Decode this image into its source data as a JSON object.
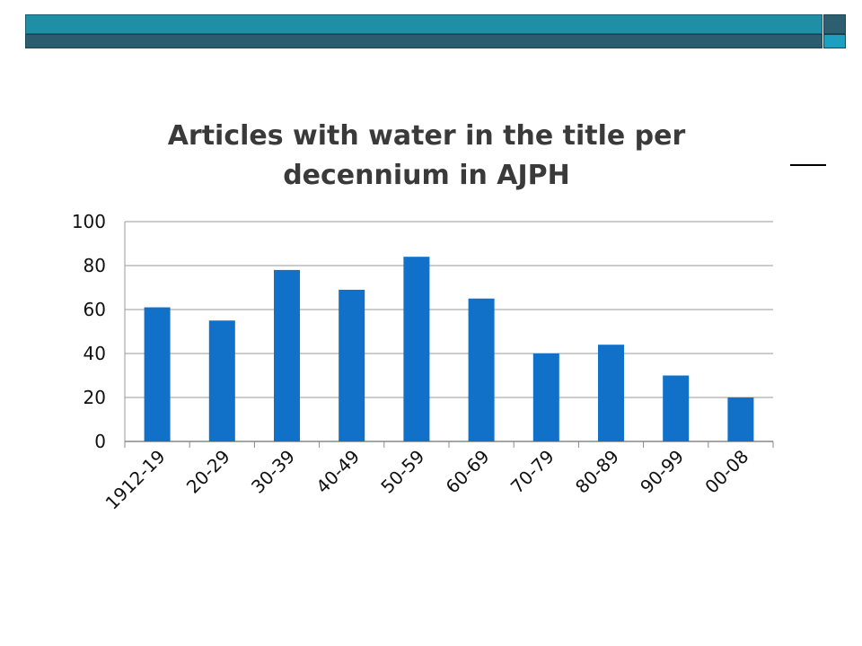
{
  "colors": {
    "bar": "#1170c8",
    "header_top": "#1f8fa6",
    "header_bottom": "#2a5d6e"
  },
  "chart_data": {
    "type": "bar",
    "title_line1": "Articles with water in the title per",
    "title_line2": "decennium in AJPH",
    "categories": [
      "1912-19",
      "20-29",
      "30-39",
      "40-49",
      "50-59",
      "60-69",
      "70-79",
      "80-89",
      "90-99",
      "00-08"
    ],
    "values": [
      61,
      55,
      78,
      69,
      84,
      65,
      40,
      44,
      30,
      20
    ],
    "yticks": [
      "0",
      "20",
      "40",
      "60",
      "80",
      "100"
    ],
    "ylim": [
      0,
      100
    ],
    "grid": true,
    "legend": false
  }
}
